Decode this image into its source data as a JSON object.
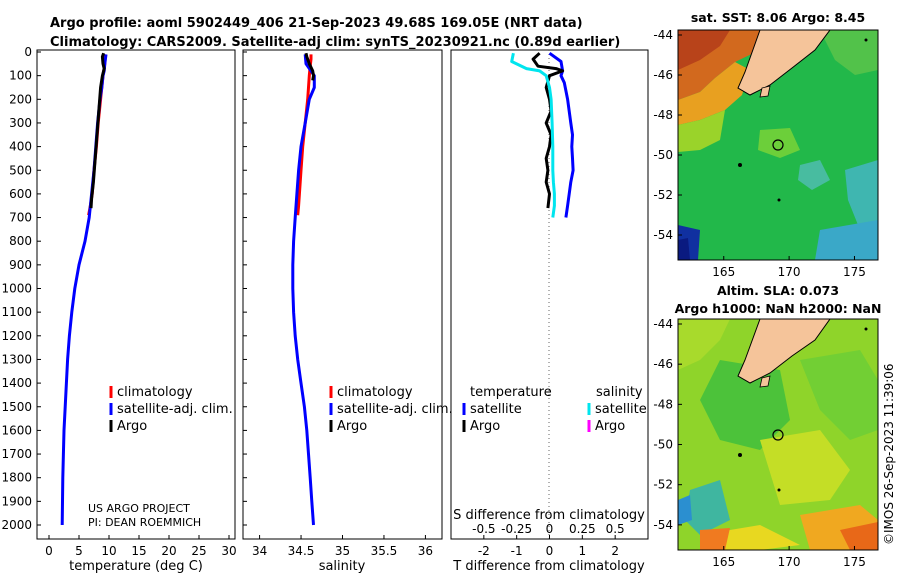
{
  "title_line1": "Argo profile: aoml 5902449_406 21-Sep-2023 49.68S 169.05E (NRT data)",
  "title_line2": "Climatology: CARS2009. Satellite-adj clim: synTS_20230921.nc (0.89d earlier)",
  "credit_line1": "US ARGO PROJECT",
  "credit_line2": "PI: DEAN ROEMMICH",
  "imos_stamp": "©IMOS 26-Sep-2023 11:39:06",
  "colors": {
    "climatology": "#ff0000",
    "satellite": "#0000ff",
    "argo": "#000000",
    "sat_salinity": "#00e5ee",
    "argo_salinity": "#ff00ff",
    "land": "#f5c49a"
  },
  "depth_ticks": [
    "0",
    "100",
    "200",
    "300",
    "400",
    "500",
    "600",
    "700",
    "800",
    "900",
    "1000",
    "1100",
    "1200",
    "1300",
    "1400",
    "1500",
    "1600",
    "1700",
    "1800",
    "1900",
    "2000"
  ],
  "chart_data": [
    {
      "type": "line",
      "name": "temperature",
      "xlabel": "temperature (deg C)",
      "ylabel": "depth",
      "xlim": [
        -2,
        31
      ],
      "ylim": [
        2060,
        0
      ],
      "xticks": [
        "0",
        "5",
        "10",
        "15",
        "20",
        "25",
        "30"
      ],
      "legend": [
        "climatology",
        "satellite-adj. clim.",
        "Argo"
      ],
      "series": [
        {
          "name": "climatology",
          "x": [
            9.4,
            9.3,
            9.0,
            8.6,
            8.2,
            7.9,
            7.5,
            7.2,
            6.9,
            6.6
          ],
          "y": [
            10,
            50,
            100,
            200,
            300,
            400,
            500,
            600,
            650,
            690
          ]
        },
        {
          "name": "satellite-adj. clim.",
          "x": [
            9.5,
            9.3,
            9.2,
            9.0,
            8.8,
            8.5,
            8.1,
            7.8,
            7.5,
            7.1,
            6.7,
            6.0,
            5.0,
            4.3,
            3.8,
            3.4,
            3.1,
            2.9,
            2.7,
            2.5,
            2.4,
            2.3,
            2.2
          ],
          "y": [
            10,
            50,
            80,
            100,
            150,
            200,
            300,
            400,
            500,
            600,
            700,
            800,
            900,
            1000,
            1100,
            1200,
            1300,
            1400,
            1500,
            1600,
            1700,
            1800,
            2000
          ]
        },
        {
          "name": "Argo",
          "x": [
            9.1,
            8.9,
            9.0,
            9.2,
            8.9,
            8.6,
            8.3,
            8.0,
            7.7,
            7.4,
            7.1,
            7.0
          ],
          "y": [
            5,
            20,
            50,
            70,
            100,
            150,
            250,
            350,
            450,
            550,
            620,
            660
          ]
        }
      ]
    },
    {
      "type": "line",
      "name": "salinity",
      "xlabel": "salinity",
      "xlim": [
        33.8,
        36.2
      ],
      "ylim": [
        2060,
        0
      ],
      "xticks": [
        "34",
        "34.5",
        "35",
        "35.5",
        "36"
      ],
      "legend": [
        "climatology",
        "satellite-adj. clim.",
        "Argo"
      ],
      "series": [
        {
          "name": "climatology",
          "x": [
            34.62,
            34.62,
            34.61,
            34.6,
            34.58,
            34.55,
            34.52,
            34.5,
            34.49,
            34.48,
            34.47,
            34.46
          ],
          "y": [
            10,
            30,
            60,
            100,
            200,
            300,
            400,
            500,
            550,
            600,
            650,
            690
          ]
        },
        {
          "name": "satellite-adj. clim.",
          "x": [
            34.55,
            34.56,
            34.62,
            34.66,
            34.66,
            34.6,
            34.55,
            34.5,
            34.47,
            34.45,
            34.43,
            34.41,
            34.4,
            34.4,
            34.41,
            34.43,
            34.46,
            34.5,
            34.54,
            34.57,
            34.59,
            34.61,
            34.63,
            34.65
          ],
          "y": [
            10,
            50,
            80,
            100,
            150,
            200,
            300,
            400,
            500,
            600,
            700,
            800,
            900,
            1000,
            1100,
            1200,
            1300,
            1400,
            1500,
            1600,
            1700,
            1800,
            1900,
            2000
          ]
        },
        {
          "name": "Argo",
          "x": [
            34.56,
            34.57,
            34.6,
            34.64,
            34.65,
            34.64
          ],
          "y": [
            5,
            20,
            50,
            80,
            100,
            120
          ]
        }
      ]
    },
    {
      "type": "line",
      "name": "difference from climatology",
      "xlabel": "T difference from climatology",
      "xlabel2": "S difference from climatology",
      "xlim": [
        -3,
        3
      ],
      "ylim": [
        2060,
        0
      ],
      "xticks": [
        "-2",
        "-1",
        "0",
        "1",
        "2"
      ],
      "xticks_salinity": [
        "-0.5",
        "-0.25",
        "0",
        "0.25",
        "0.5"
      ],
      "legend_headers": [
        "temperature",
        "salinity"
      ],
      "legend": [
        "satellite",
        "Argo",
        "satellite",
        "Argo"
      ],
      "series": [
        {
          "name": "temperature satellite",
          "x": [
            0.0,
            0.35,
            0.4,
            0.35,
            0.45,
            0.55,
            0.65,
            0.7,
            0.68,
            0.7,
            0.72,
            0.65,
            0.6,
            0.55,
            0.5
          ],
          "y": [
            5,
            40,
            80,
            100,
            130,
            200,
            300,
            350,
            400,
            450,
            500,
            550,
            600,
            650,
            700
          ]
        },
        {
          "name": "temperature Argo",
          "x": [
            -0.3,
            -0.5,
            -0.35,
            0.2,
            0.4,
            0.0,
            -0.1,
            0.0,
            0.05,
            -0.1,
            0.05,
            0.0,
            -0.1,
            -0.05,
            -0.1,
            0.0,
            -0.05
          ],
          "y": [
            5,
            30,
            60,
            70,
            80,
            100,
            150,
            200,
            250,
            300,
            350,
            400,
            450,
            500,
            550,
            600,
            660
          ]
        },
        {
          "name": "salinity satellite",
          "x": [
            -1.1,
            -1.15,
            -0.7,
            -0.3,
            -0.1,
            0.0,
            0.05,
            0.08,
            0.1,
            0.1,
            0.1,
            0.12,
            0.15,
            0.15,
            0.1
          ],
          "y": [
            5,
            40,
            70,
            80,
            100,
            150,
            200,
            300,
            400,
            450,
            500,
            550,
            600,
            650,
            700
          ]
        }
      ]
    }
  ],
  "map_sst": {
    "title": "sat. SST: 8.06 Argo: 8.45",
    "lat_ticks": [
      "-44",
      "-46",
      "-48",
      "-50",
      "-52",
      "-54"
    ],
    "lon_ticks": [
      "165",
      "170",
      "175"
    ]
  },
  "map_sla": {
    "title1": "Altim. SLA: 0.073",
    "title2": "Argo h1000: NaN h2000: NaN",
    "lat_ticks": [
      "-44",
      "-46",
      "-48",
      "-50",
      "-52",
      "-54"
    ],
    "lon_ticks": [
      "165",
      "170",
      "175"
    ]
  }
}
